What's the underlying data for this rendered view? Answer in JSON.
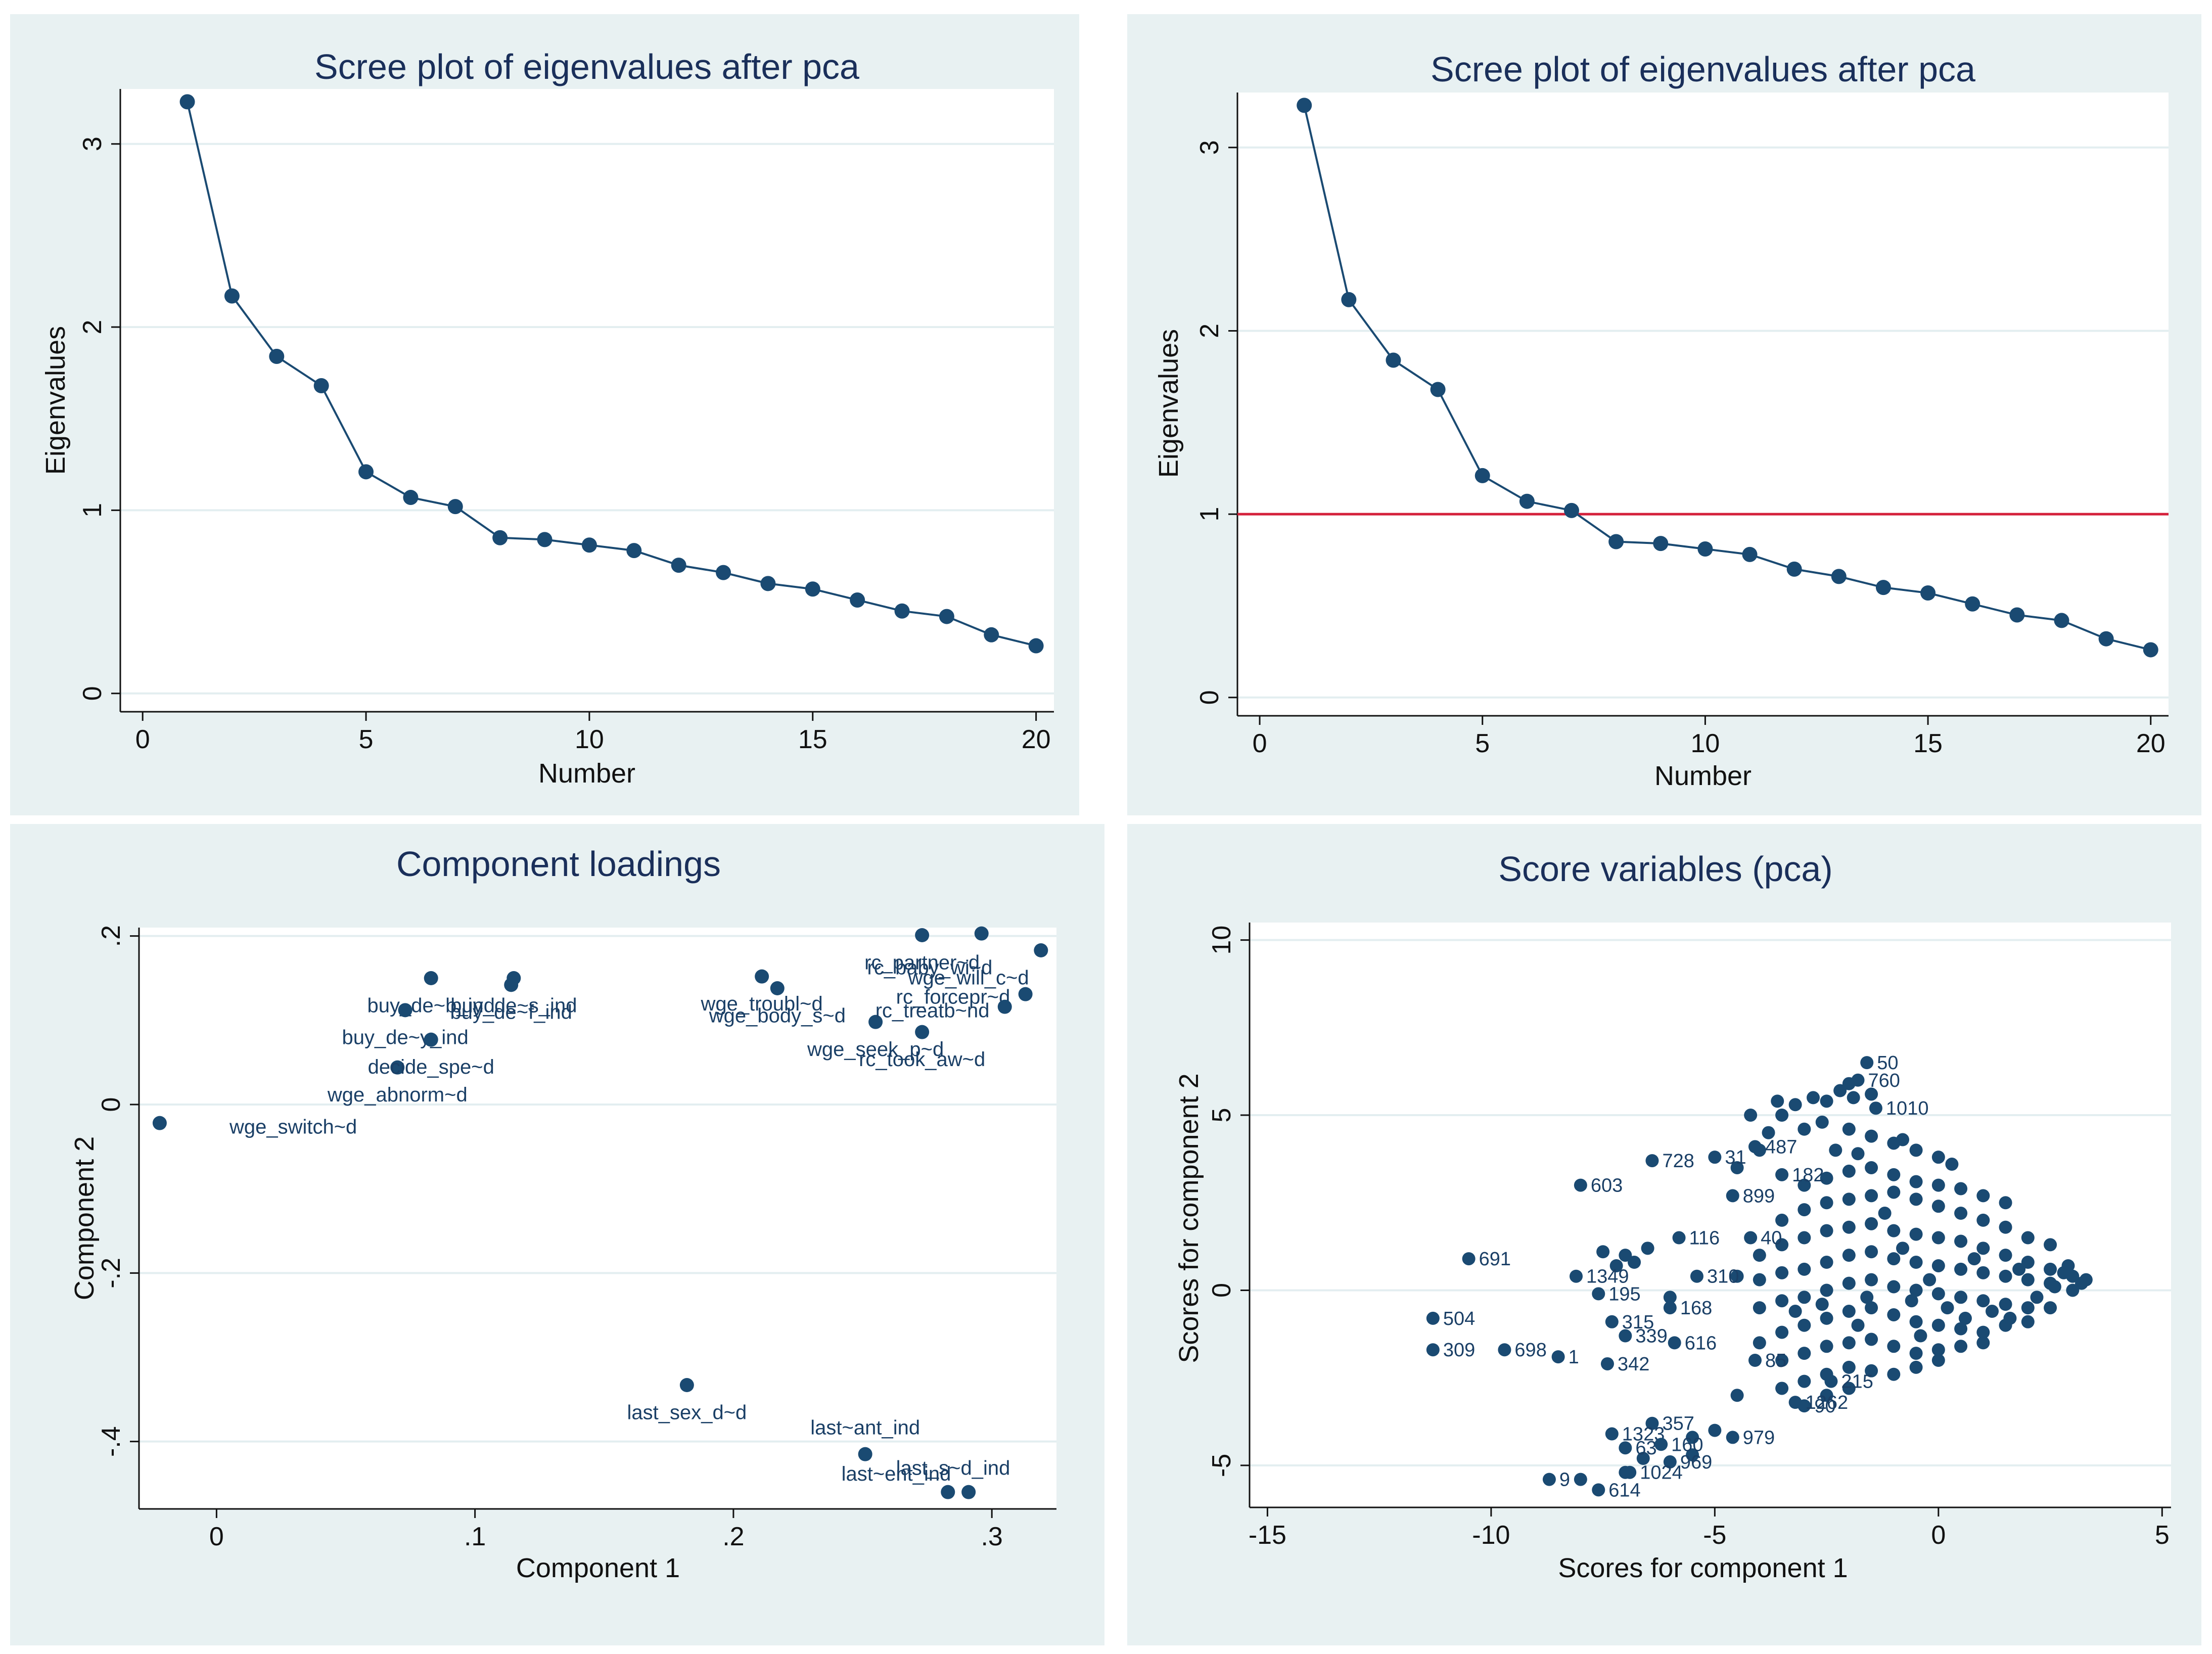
{
  "colors": {
    "marker": "#1a4a72",
    "refline": "#d4203a",
    "panel_bg": "#e8f1f2",
    "plot_bg": "#ffffff",
    "grid": "#e3eef0",
    "title": "#1a2f5a"
  },
  "chart_data": [
    {
      "type": "line",
      "title": "Scree plot of eigenvalues after pca",
      "xlabel": "Number",
      "ylabel": "Eigenvalues",
      "x": [
        1,
        2,
        3,
        4,
        5,
        6,
        7,
        8,
        9,
        10,
        11,
        12,
        13,
        14,
        15,
        16,
        17,
        18,
        19,
        20
      ],
      "values": [
        3.23,
        2.17,
        1.84,
        1.68,
        1.21,
        1.07,
        1.02,
        0.85,
        0.84,
        0.81,
        0.78,
        0.7,
        0.66,
        0.6,
        0.57,
        0.51,
        0.45,
        0.42,
        0.32,
        0.26
      ],
      "xlim": [
        -0.5,
        20.4
      ],
      "ylim": [
        -0.1,
        3.3
      ],
      "xticks": [
        {
          "v": 0,
          "label": "0"
        },
        {
          "v": 5,
          "label": "5"
        },
        {
          "v": 10,
          "label": "10"
        },
        {
          "v": 15,
          "label": "15"
        },
        {
          "v": 20,
          "label": "20"
        }
      ],
      "yticks": [
        {
          "v": 0,
          "label": "0"
        },
        {
          "v": 1,
          "label": "1"
        },
        {
          "v": 2,
          "label": "2"
        },
        {
          "v": 3,
          "label": "3"
        }
      ],
      "hline": null
    },
    {
      "type": "line",
      "title": "Scree plot of eigenvalues after pca",
      "xlabel": "Number",
      "ylabel": "Eigenvalues",
      "x": [
        1,
        2,
        3,
        4,
        5,
        6,
        7,
        8,
        9,
        10,
        11,
        12,
        13,
        14,
        15,
        16,
        17,
        18,
        19,
        20
      ],
      "values": [
        3.23,
        2.17,
        1.84,
        1.68,
        1.21,
        1.07,
        1.02,
        0.85,
        0.84,
        0.81,
        0.78,
        0.7,
        0.66,
        0.6,
        0.57,
        0.51,
        0.45,
        0.42,
        0.32,
        0.26
      ],
      "xlim": [
        -0.5,
        20.4
      ],
      "ylim": [
        -0.1,
        3.3
      ],
      "xticks": [
        {
          "v": 0,
          "label": "0"
        },
        {
          "v": 5,
          "label": "5"
        },
        {
          "v": 10,
          "label": "10"
        },
        {
          "v": 15,
          "label": "15"
        },
        {
          "v": 20,
          "label": "20"
        }
      ],
      "yticks": [
        {
          "v": 0,
          "label": "0"
        },
        {
          "v": 1,
          "label": "1"
        },
        {
          "v": 2,
          "label": "2"
        },
        {
          "v": 3,
          "label": "3"
        }
      ],
      "hline": 1
    },
    {
      "type": "scatter",
      "title": "Component loadings",
      "xlabel": "Component 1",
      "ylabel": "Component 2",
      "xlim": [
        -0.03,
        0.325
      ],
      "ylim": [
        -0.48,
        0.21
      ],
      "xticks": [
        {
          "v": 0,
          "label": "0"
        },
        {
          "v": 0.1,
          "label": ".1"
        },
        {
          "v": 0.2,
          "label": ".2"
        },
        {
          "v": 0.3,
          "label": ".3"
        }
      ],
      "yticks": [
        {
          "v": -0.4,
          "label": "-.4"
        },
        {
          "v": -0.2,
          "label": "-.2"
        },
        {
          "v": 0,
          "label": "0"
        },
        {
          "v": 0.2,
          "label": ".2"
        }
      ],
      "points": [
        {
          "x": -0.022,
          "y": -0.022,
          "label": "wge_switch~d",
          "lx": 0.005,
          "ly": -0.026,
          "anchor": "start"
        },
        {
          "x": 0.07,
          "y": 0.044,
          "label": "wge_abnorm~d",
          "lx": 0.07,
          "ly": 0.012,
          "anchor": "middle"
        },
        {
          "x": 0.083,
          "y": 0.15,
          "label": "buy_de~b_ind",
          "lx": 0.083,
          "ly": 0.118,
          "anchor": "middle"
        },
        {
          "x": 0.073,
          "y": 0.112,
          "label": "buy_de~y_ind",
          "lx": 0.073,
          "ly": 0.08,
          "anchor": "middle"
        },
        {
          "x": 0.083,
          "y": 0.077,
          "label": "decide_spe~d",
          "lx": 0.083,
          "ly": 0.045,
          "anchor": "middle"
        },
        {
          "x": 0.115,
          "y": 0.15,
          "label": "buy_de~s_ind",
          "lx": 0.115,
          "ly": 0.118,
          "anchor": "middle"
        },
        {
          "x": 0.114,
          "y": 0.142,
          "label": "buy_de~f_ind",
          "lx": 0.114,
          "ly": 0.11,
          "anchor": "middle"
        },
        {
          "x": 0.211,
          "y": 0.152,
          "label": "wge_troubl~d",
          "lx": 0.211,
          "ly": 0.12,
          "anchor": "middle"
        },
        {
          "x": 0.217,
          "y": 0.138,
          "label": "wge_body_s~d",
          "lx": 0.217,
          "ly": 0.106,
          "anchor": "middle"
        },
        {
          "x": 0.255,
          "y": 0.098,
          "label": "wge_seek_p~d",
          "lx": 0.255,
          "ly": 0.066,
          "anchor": "middle"
        },
        {
          "x": 0.273,
          "y": 0.201,
          "label": "rc_partner~d",
          "lx": 0.273,
          "ly": 0.169,
          "anchor": "middle"
        },
        {
          "x": 0.296,
          "y": 0.203,
          "label": "rc_baby_wi~d",
          "lx": 0.276,
          "ly": 0.163,
          "anchor": "middle"
        },
        {
          "x": 0.319,
          "y": 0.183,
          "label": "wge_will_c~d",
          "lx": 0.291,
          "ly": 0.151,
          "anchor": "middle"
        },
        {
          "x": 0.313,
          "y": 0.131,
          "label": "rc_forcepr~d",
          "lx": 0.285,
          "ly": 0.128,
          "anchor": "middle"
        },
        {
          "x": 0.305,
          "y": 0.116,
          "label": "rc_treatb~nd",
          "lx": 0.277,
          "ly": 0.112,
          "anchor": "middle"
        },
        {
          "x": 0.273,
          "y": 0.086,
          "label": "rc_took_aw~d",
          "lx": 0.273,
          "ly": 0.054,
          "anchor": "middle"
        },
        {
          "x": 0.182,
          "y": -0.333,
          "label": "last_sex_d~d",
          "lx": 0.182,
          "ly": -0.365,
          "anchor": "middle"
        },
        {
          "x": 0.251,
          "y": -0.415,
          "label": "last~ant_ind",
          "lx": 0.251,
          "ly": -0.383,
          "anchor": "middle"
        },
        {
          "x": 0.283,
          "y": -0.46,
          "label": "last_s~d_ind",
          "lx": 0.285,
          "ly": -0.431,
          "anchor": "middle"
        },
        {
          "x": 0.291,
          "y": -0.46,
          "label": "last~ent_ind",
          "lx": 0.263,
          "ly": -0.438,
          "anchor": "middle"
        }
      ]
    },
    {
      "type": "scatter",
      "title": "Score variables (pca)",
      "xlabel": "Scores for component 1",
      "ylabel": "Scores for component 2",
      "xlim": [
        -15.4,
        5.2
      ],
      "ylim": [
        -6.2,
        10.5
      ],
      "xticks": [
        {
          "v": -15,
          "label": "-15"
        },
        {
          "v": -10,
          "label": "-10"
        },
        {
          "v": -5,
          "label": "-5"
        },
        {
          "v": 0,
          "label": "0"
        },
        {
          "v": 5,
          "label": "5"
        }
      ],
      "yticks": [
        {
          "v": -5,
          "label": "-5"
        },
        {
          "v": 0,
          "label": "0"
        },
        {
          "v": 5,
          "label": "5"
        },
        {
          "v": 10,
          "label": "10"
        }
      ],
      "labeled_points": [
        {
          "x": -1.6,
          "y": 6.5,
          "label": "50"
        },
        {
          "x": -8.0,
          "y": 3.0,
          "label": "603"
        },
        {
          "x": -6.4,
          "y": 3.7,
          "label": "728"
        },
        {
          "x": -5.0,
          "y": 3.8,
          "label": "31"
        },
        {
          "x": -10.5,
          "y": 0.9,
          "label": "691"
        },
        {
          "x": -4.6,
          "y": 2.7,
          "label": "899"
        },
        {
          "x": -5.8,
          "y": 1.5,
          "label": "116"
        },
        {
          "x": -8.1,
          "y": 0.4,
          "label": "1349"
        },
        {
          "x": -7.6,
          "y": -0.1,
          "label": "195"
        },
        {
          "x": -6.0,
          "y": -0.5,
          "label": "168"
        },
        {
          "x": -11.3,
          "y": -0.8,
          "label": "504"
        },
        {
          "x": -11.3,
          "y": -1.7,
          "label": "309"
        },
        {
          "x": -9.7,
          "y": -1.7,
          "label": "698"
        },
        {
          "x": -8.5,
          "y": -1.9,
          "label": "1"
        },
        {
          "x": -7.3,
          "y": -0.9,
          "label": "315"
        },
        {
          "x": -7.0,
          "y": -1.3,
          "label": "339"
        },
        {
          "x": -5.9,
          "y": -1.5,
          "label": "616"
        },
        {
          "x": -7.4,
          "y": -2.1,
          "label": "342"
        },
        {
          "x": -6.4,
          "y": -3.8,
          "label": "357"
        },
        {
          "x": -7.3,
          "y": -4.1,
          "label": "1323"
        },
        {
          "x": -7.0,
          "y": -4.5,
          "label": "63"
        },
        {
          "x": -4.6,
          "y": -4.2,
          "label": "979"
        },
        {
          "x": -6.0,
          "y": -4.9,
          "label": "969"
        },
        {
          "x": -6.9,
          "y": -5.2,
          "label": "1024"
        },
        {
          "x": -7.6,
          "y": -5.7,
          "label": "614"
        },
        {
          "x": -3.0,
          "y": -3.3,
          "label": "90"
        },
        {
          "x": -4.2,
          "y": 1.5,
          "label": "40"
        },
        {
          "x": -4.1,
          "y": 4.1,
          "label": "487"
        },
        {
          "x": -5.4,
          "y": 0.4,
          "label": "310"
        },
        {
          "x": -4.1,
          "y": -2.0,
          "label": "85"
        },
        {
          "x": -2.4,
          "y": -2.6,
          "label": "215"
        },
        {
          "x": -3.2,
          "y": -3.2,
          "label": "1262"
        },
        {
          "x": -1.4,
          "y": 5.2,
          "label": "1010"
        },
        {
          "x": -3.5,
          "y": 3.3,
          "label": "182"
        },
        {
          "x": -1.8,
          "y": 6.0,
          "label": "760"
        },
        {
          "x": -8.7,
          "y": -5.4,
          "label": "9"
        },
        {
          "x": -6.2,
          "y": -4.4,
          "label": "160"
        }
      ],
      "unlabeled_points": [
        [
          -7.5,
          1.1
        ],
        [
          -7.0,
          1.0
        ],
        [
          -6.8,
          0.8
        ],
        [
          -6.5,
          1.2
        ],
        [
          -7.2,
          0.7
        ],
        [
          -6.0,
          -0.2
        ],
        [
          -4.5,
          3.5
        ],
        [
          -4.0,
          4.0
        ],
        [
          -3.8,
          4.5
        ],
        [
          -3.5,
          5.0
        ],
        [
          -3.2,
          5.3
        ],
        [
          -2.8,
          5.5
        ],
        [
          -2.5,
          5.4
        ],
        [
          -2.2,
          5.7
        ],
        [
          -2.0,
          5.9
        ],
        [
          -1.9,
          5.5
        ],
        [
          -1.5,
          5.6
        ],
        [
          -3.6,
          5.4
        ],
        [
          -4.2,
          5.0
        ],
        [
          -3.0,
          4.6
        ],
        [
          -2.6,
          4.8
        ],
        [
          -2.0,
          4.6
        ],
        [
          -1.5,
          4.4
        ],
        [
          -1.0,
          4.2
        ],
        [
          -0.5,
          4.0
        ],
        [
          0.0,
          3.8
        ],
        [
          0.3,
          3.6
        ],
        [
          -0.8,
          4.3
        ],
        [
          -1.8,
          3.9
        ],
        [
          -2.3,
          4.0
        ],
        [
          -3.0,
          3.0
        ],
        [
          -2.5,
          3.2
        ],
        [
          -2.0,
          3.4
        ],
        [
          -1.5,
          3.5
        ],
        [
          -1.0,
          3.3
        ],
        [
          -0.5,
          3.1
        ],
        [
          0.0,
          3.0
        ],
        [
          0.5,
          2.9
        ],
        [
          1.0,
          2.7
        ],
        [
          1.5,
          2.5
        ],
        [
          -3.5,
          2.0
        ],
        [
          -3.0,
          2.3
        ],
        [
          -2.5,
          2.5
        ],
        [
          -2.0,
          2.6
        ],
        [
          -1.5,
          2.7
        ],
        [
          -1.0,
          2.8
        ],
        [
          -0.5,
          2.6
        ],
        [
          0.0,
          2.4
        ],
        [
          0.5,
          2.2
        ],
        [
          1.0,
          2.0
        ],
        [
          1.5,
          1.8
        ],
        [
          2.0,
          1.5
        ],
        [
          2.5,
          1.3
        ],
        [
          -4.0,
          1.0
        ],
        [
          -3.5,
          1.3
        ],
        [
          -3.0,
          1.5
        ],
        [
          -2.5,
          1.7
        ],
        [
          -2.0,
          1.8
        ],
        [
          -1.5,
          1.9
        ],
        [
          -1.0,
          1.7
        ],
        [
          -0.5,
          1.6
        ],
        [
          0.0,
          1.5
        ],
        [
          0.5,
          1.4
        ],
        [
          1.0,
          1.2
        ],
        [
          1.5,
          1.0
        ],
        [
          2.0,
          0.8
        ],
        [
          2.5,
          0.6
        ],
        [
          3.0,
          0.4
        ],
        [
          3.2,
          0.2
        ],
        [
          -4.5,
          0.4
        ],
        [
          -4.0,
          0.3
        ],
        [
          -3.5,
          0.5
        ],
        [
          -3.0,
          0.6
        ],
        [
          -2.5,
          0.8
        ],
        [
          -2.0,
          1.0
        ],
        [
          -1.5,
          1.1
        ],
        [
          -1.0,
          0.9
        ],
        [
          -0.5,
          0.8
        ],
        [
          0.0,
          0.7
        ],
        [
          0.5,
          0.6
        ],
        [
          1.0,
          0.5
        ],
        [
          1.5,
          0.4
        ],
        [
          2.0,
          0.3
        ],
        [
          2.5,
          0.2
        ],
        [
          3.0,
          0.0
        ],
        [
          -4.0,
          -0.5
        ],
        [
          -3.5,
          -0.3
        ],
        [
          -3.0,
          -0.2
        ],
        [
          -2.5,
          0.0
        ],
        [
          -2.0,
          0.2
        ],
        [
          -1.5,
          0.3
        ],
        [
          -1.0,
          0.1
        ],
        [
          -0.5,
          0.0
        ],
        [
          0.0,
          -0.1
        ],
        [
          0.5,
          -0.2
        ],
        [
          1.0,
          -0.3
        ],
        [
          1.5,
          -0.4
        ],
        [
          2.0,
          -0.5
        ],
        [
          2.5,
          -0.5
        ],
        [
          -4.0,
          -1.5
        ],
        [
          -3.5,
          -1.2
        ],
        [
          -3.0,
          -1.0
        ],
        [
          -2.5,
          -0.8
        ],
        [
          -2.0,
          -0.6
        ],
        [
          -1.5,
          -0.5
        ],
        [
          -1.0,
          -0.7
        ],
        [
          -0.5,
          -0.9
        ],
        [
          0.0,
          -1.0
        ],
        [
          0.5,
          -1.1
        ],
        [
          1.0,
          -1.2
        ],
        [
          1.5,
          -1.0
        ],
        [
          2.0,
          -0.9
        ],
        [
          -3.5,
          -2.0
        ],
        [
          -3.0,
          -1.8
        ],
        [
          -2.5,
          -1.6
        ],
        [
          -2.0,
          -1.5
        ],
        [
          -1.5,
          -1.4
        ],
        [
          -1.0,
          -1.6
        ],
        [
          -0.5,
          -1.8
        ],
        [
          0.0,
          -1.7
        ],
        [
          0.5,
          -1.6
        ],
        [
          1.0,
          -1.5
        ],
        [
          -3.0,
          -2.6
        ],
        [
          -2.5,
          -2.4
        ],
        [
          -2.0,
          -2.2
        ],
        [
          -1.5,
          -2.3
        ],
        [
          -1.0,
          -2.4
        ],
        [
          -0.5,
          -2.2
        ],
        [
          0.0,
          -2.0
        ],
        [
          -2.5,
          -3.0
        ],
        [
          -2.0,
          -2.8
        ],
        [
          -3.5,
          -2.8
        ],
        [
          -4.5,
          -3.0
        ],
        [
          -5.5,
          -4.2
        ],
        [
          -5.0,
          -4.0
        ],
        [
          -6.6,
          -4.8
        ],
        [
          -8.0,
          -5.4
        ],
        [
          -7.0,
          -5.2
        ],
        [
          -5.5,
          -4.7
        ],
        [
          -1.2,
          2.2
        ],
        [
          -0.8,
          1.2
        ],
        [
          -0.2,
          0.3
        ],
        [
          0.8,
          0.9
        ],
        [
          1.8,
          0.6
        ],
        [
          2.8,
          0.5
        ],
        [
          2.2,
          -0.2
        ],
        [
          1.2,
          -0.6
        ],
        [
          0.2,
          -0.5
        ],
        [
          -0.6,
          -0.3
        ],
        [
          -1.6,
          -0.2
        ],
        [
          -2.6,
          -0.4
        ],
        [
          -3.2,
          -0.6
        ],
        [
          -1.8,
          -1.0
        ],
        [
          -0.4,
          -1.3
        ],
        [
          0.6,
          -0.8
        ],
        [
          1.6,
          -0.8
        ],
        [
          2.6,
          0.1
        ],
        [
          3.3,
          0.3
        ],
        [
          2.9,
          0.7
        ]
      ]
    }
  ]
}
